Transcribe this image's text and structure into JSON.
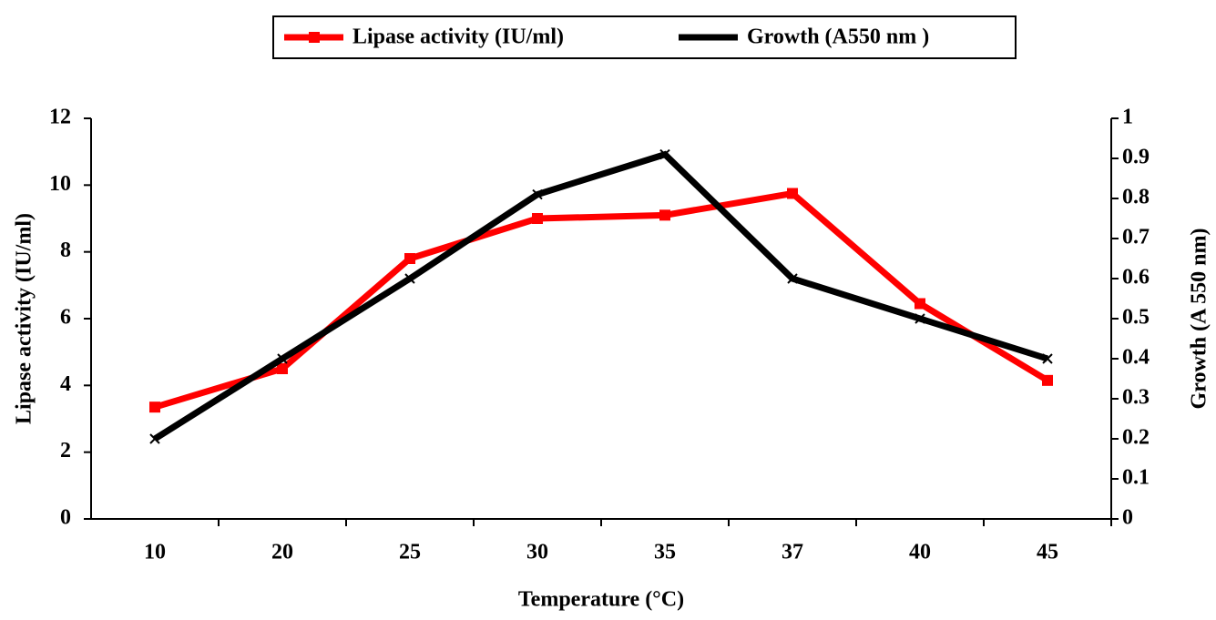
{
  "chart_data": {
    "type": "line",
    "x_label": "Temperature (°C)",
    "y_label": "Lipase activity (IU/ml)",
    "y2_label": "Growth (A 550 nm)",
    "categories": [
      "10",
      "20",
      "25",
      "30",
      "35",
      "37",
      "40",
      "45"
    ],
    "series": [
      {
        "name": "Lipase activity (IU/ml)",
        "color": "#ff0000",
        "values": [
          3.35,
          4.5,
          7.8,
          9.0,
          9.1,
          9.75,
          6.45,
          4.15
        ]
      },
      {
        "name": "Growth (A550 nm )",
        "color": "#000000",
        "axis": "y2",
        "values": [
          0.2,
          0.4,
          0.6,
          0.81,
          0.91,
          0.6,
          0.5,
          0.4
        ]
      }
    ],
    "ylim": [
      0,
      12
    ],
    "yticks": [
      0,
      2,
      4,
      6,
      8,
      10,
      12
    ],
    "y2lim": [
      0,
      1
    ],
    "y2ticks": [
      0,
      0.1,
      0.2,
      0.3,
      0.4,
      0.5,
      0.6,
      0.7,
      0.8,
      0.9,
      1
    ],
    "grid": false,
    "legend": "top"
  }
}
